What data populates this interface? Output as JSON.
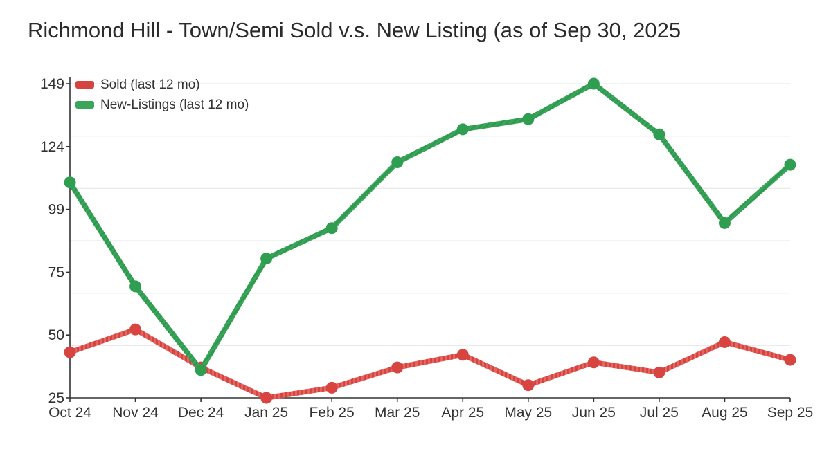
{
  "title": "Richmond Hill - Town/Semi Sold v.s. New Listing (as of Sep 30, 2025",
  "legend": {
    "sold_label": "Sold (last 12 mo)",
    "new_listings_label": "New-Listings (last 12 mo)"
  },
  "chart_data": {
    "type": "line",
    "title": "Richmond Hill - Town/Semi Sold v.s. New Listing (as of Sep 30, 2025",
    "categories": [
      "Oct 24",
      "Nov 24",
      "Dec 24",
      "Jan 25",
      "Feb 25",
      "Mar 25",
      "Apr 25",
      "May 25",
      "Jun 25",
      "Jul 25",
      "Aug 25",
      "Sep 25"
    ],
    "series": [
      {
        "name": "Sold (last 12 mo)",
        "color": "#d64440",
        "stripe_color": "#e56561",
        "point_color": "#d84540",
        "stripe_angle": 0,
        "values": [
          43,
          52,
          37,
          25,
          29,
          37,
          42,
          30,
          39,
          35,
          47,
          40
        ]
      },
      {
        "name": "New-Listings (last 12 mo)",
        "color": "#3ba55c",
        "stripe_color": "#2d9a4e",
        "point_color": "#2f9e51",
        "stripe_angle": 45,
        "values": [
          110,
          69,
          36,
          80,
          92,
          118,
          131,
          135,
          149,
          129,
          94,
          117
        ]
      }
    ],
    "y_ticks": [
      149,
      124,
      99,
      75,
      50,
      25
    ],
    "y_min": 25,
    "y_max": 149,
    "xlabel": "",
    "ylabel": "",
    "grid": true,
    "legend_position": "top-left",
    "axis_color": "#333333",
    "grid_color": "#eaeaea",
    "label_color": "#333333"
  }
}
